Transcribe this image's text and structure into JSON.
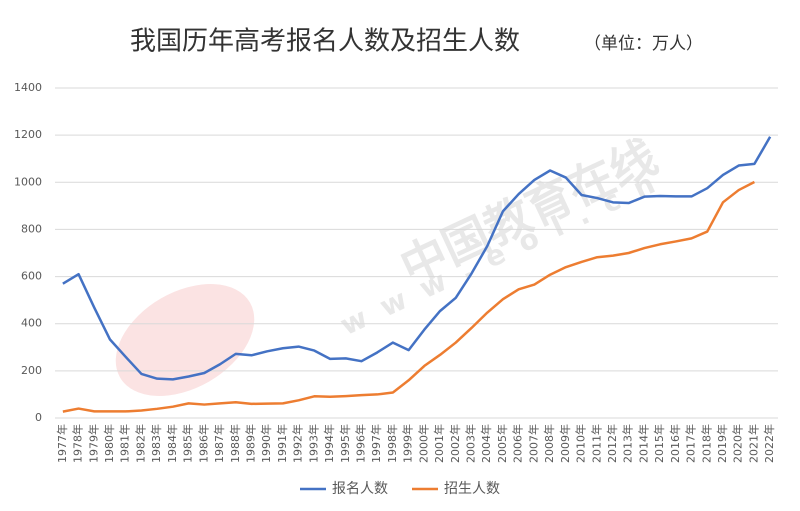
{
  "chart_data": {
    "type": "line",
    "title": "我国历年高考报名人数及招生人数",
    "subtitle": "（单位：万人）",
    "watermark": "中国教育在线",
    "watermark_url": "w w w . e o l . c n",
    "categories": [
      "1977年",
      "1978年",
      "1979年",
      "1980年",
      "1981年",
      "1982年",
      "1983年",
      "1984年",
      "1985年",
      "1986年",
      "1987年",
      "1988年",
      "1989年",
      "1990年",
      "1991年",
      "1992年",
      "1993年",
      "1994年",
      "1995年",
      "1996年",
      "1997年",
      "1998年",
      "1999年",
      "2000年",
      "2001年",
      "2002年",
      "2003年",
      "2004年",
      "2005年",
      "2006年",
      "2007年",
      "2008年",
      "2009年",
      "2010年",
      "2011年",
      "2012年",
      "2013年",
      "2014年",
      "2015年",
      "2016年",
      "2017年",
      "2018年",
      "2019年",
      "2020年",
      "2021年",
      "2022年"
    ],
    "series": [
      {
        "name": "报名人数",
        "color": "#4472c4",
        "values": [
          570,
          610,
          468,
          333,
          259,
          187,
          167,
          164,
          176,
          191,
          228,
          272,
          266,
          283,
          296,
          303,
          286,
          251,
          253,
          241,
          278,
          320,
          288,
          375,
          454,
          510,
          613,
          729,
          877,
          950,
          1010,
          1050,
          1020,
          946,
          933,
          915,
          912,
          939,
          942,
          940,
          940,
          975,
          1031,
          1071,
          1078,
          1193
        ]
      },
      {
        "name": "招生人数",
        "color": "#ed7d31",
        "values": [
          27,
          40,
          28,
          28,
          28,
          32,
          39,
          48,
          62,
          57,
          62,
          67,
          60,
          61,
          62,
          75,
          92,
          90,
          93,
          97,
          100,
          108,
          160,
          221,
          268,
          320,
          382,
          447,
          504,
          546,
          566,
          608,
          640,
          662,
          682,
          689,
          700,
          721,
          737,
          749,
          762,
          791,
          915,
          967,
          1001,
          null
        ]
      }
    ],
    "ylim": [
      0,
      1400
    ],
    "yticks": [
      0,
      200,
      400,
      600,
      800,
      1000,
      1200,
      1400
    ],
    "grid": true,
    "legend": "bottom"
  }
}
